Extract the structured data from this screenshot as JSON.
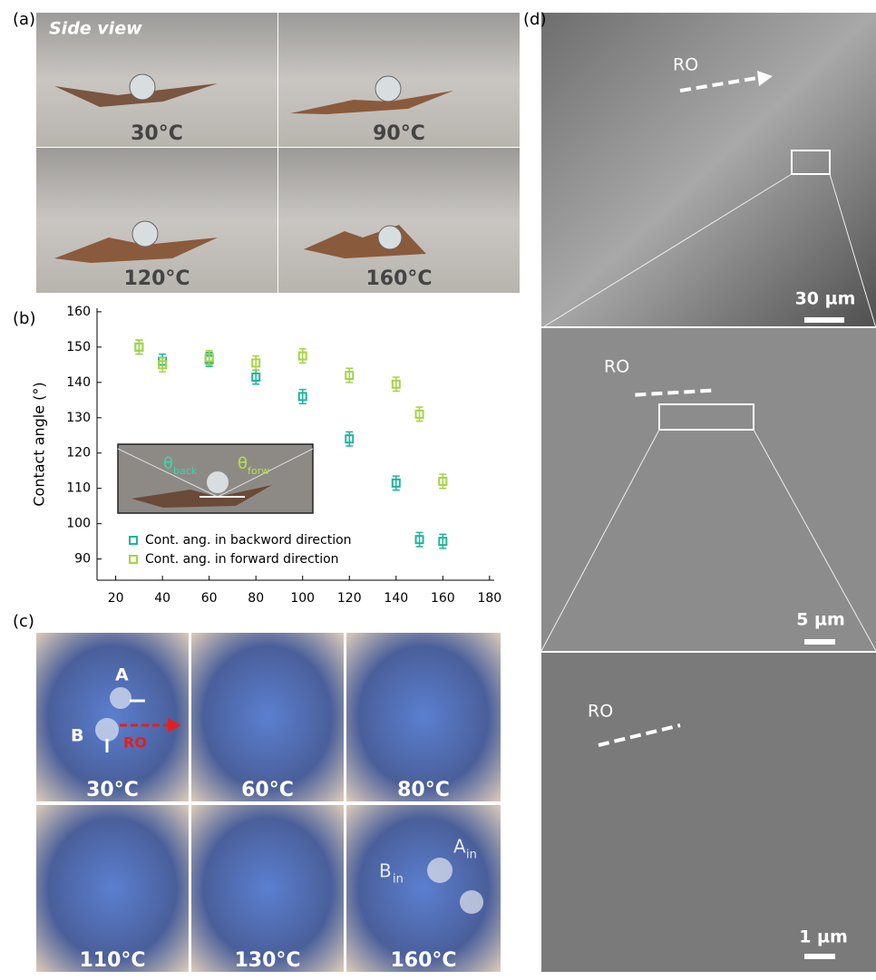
{
  "chart_data": {
    "type": "scatter",
    "y_label": "Contact angle (°)",
    "x": [
      30,
      40,
      60,
      80,
      100,
      120,
      140,
      150,
      160
    ],
    "series": [
      {
        "name": "Cont. ang. in backword direction",
        "color": "#20b49c",
        "values": [
          150,
          146,
          146.5,
          141.5,
          136,
          124,
          111.5,
          95.5,
          95
        ],
        "errors": [
          2,
          2,
          2,
          2,
          2,
          2,
          2,
          2,
          2
        ]
      },
      {
        "name": "Cont. ang. in forward direction",
        "color": "#a4d444",
        "values": [
          150,
          145,
          147,
          145.5,
          147.5,
          142,
          139.5,
          131,
          112
        ],
        "errors": [
          2,
          2,
          2,
          2,
          2,
          2,
          2,
          2,
          2
        ]
      }
    ],
    "xlim": [
      12,
      182
    ],
    "ylim": [
      84,
      161
    ],
    "xticks": [
      20,
      40,
      60,
      80,
      100,
      120,
      140,
      160,
      180
    ],
    "yticks": [
      90,
      100,
      110,
      120,
      130,
      140,
      150,
      160
    ],
    "inset": {
      "theta": "θ",
      "back": "back",
      "forw": "forw"
    }
  },
  "panels": {
    "a": {
      "label": "(a)",
      "caption": "Side view",
      "temps": [
        "30°C",
        "90°C",
        "120°C",
        "160°C"
      ]
    },
    "b": {
      "label": "(b)"
    },
    "c": {
      "label": "(c)",
      "temps": [
        "30°C",
        "60°C",
        "80°C",
        "110°C",
        "130°C",
        "160°C"
      ],
      "a": "A",
      "b": "B",
      "ro": "RO",
      "sub": "in"
    },
    "d": {
      "label": "(d)",
      "ro": "RO",
      "scales": [
        "30 µm",
        "5 µm",
        "1 µm"
      ]
    }
  }
}
